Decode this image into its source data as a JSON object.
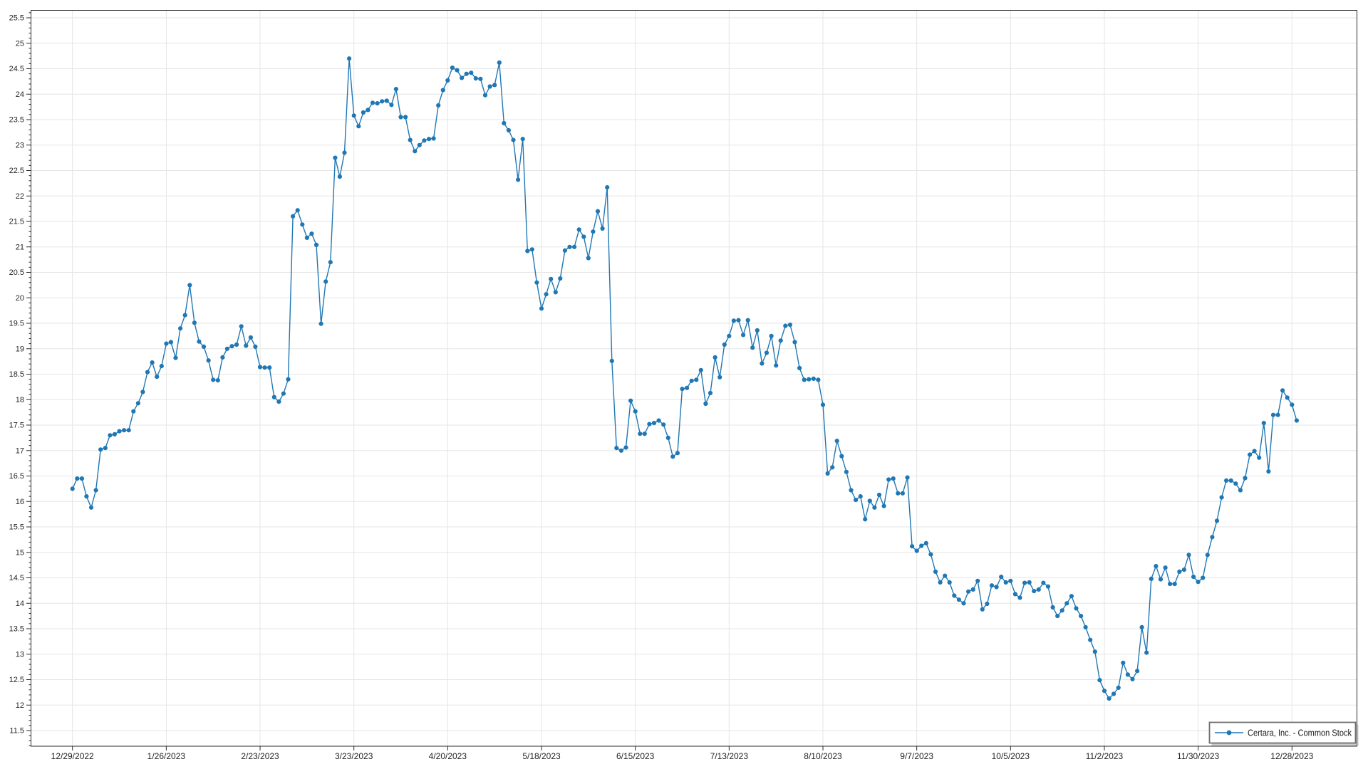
{
  "chart_data": {
    "type": "line",
    "title": "",
    "xlabel": "",
    "ylabel": "",
    "grid": true,
    "background": "#ffffff",
    "line_color": "#1f77b4",
    "marker": "circle",
    "legend_position": "bottom-right",
    "ylim": [
      11.19,
      25.65
    ],
    "y_ticks": [
      11.5,
      12,
      12.5,
      13,
      13.5,
      14,
      14.5,
      15,
      15.5,
      16,
      16.5,
      17,
      17.5,
      18,
      18.5,
      19,
      19.5,
      20,
      20.5,
      21,
      21.5,
      22,
      22.5,
      23,
      23.5,
      24,
      24.5,
      25,
      25.5
    ],
    "y_tick_labels": [
      "11.5",
      "12",
      "12.5",
      "13",
      "13.5",
      "14",
      "14.5",
      "15",
      "15.5",
      "16",
      "16.5",
      "17",
      "17.5",
      "18",
      "18.5",
      "19",
      "19.5",
      "20",
      "20.5",
      "21",
      "21.5",
      "22",
      "22.5",
      "23",
      "23.5",
      "24",
      "24.5",
      "25",
      "25.5"
    ],
    "x_tick_indices": [
      0,
      20,
      40,
      60,
      80,
      100,
      120,
      140,
      160,
      180,
      200,
      220,
      240,
      260
    ],
    "x_tick_labels": [
      "12/29/2022",
      "1/26/2023",
      "2/23/2023",
      "3/23/2023",
      "4/20/2023",
      "5/18/2023",
      "6/15/2023",
      "7/13/2023",
      "8/10/2023",
      "9/7/2023",
      "10/5/2023",
      "11/2/2023",
      "11/30/2023",
      "12/28/2023"
    ],
    "series": [
      {
        "name": "Certara, Inc. - Common Stock",
        "color": "#1f77b4",
        "dates": [
          "12/29/2022",
          "12/30/2022",
          "1/2/2023",
          "1/3/2023",
          "1/4/2023",
          "1/5/2023",
          "1/6/2023",
          "1/9/2023",
          "1/10/2023",
          "1/11/2023",
          "1/12/2023",
          "1/13/2023",
          "1/16/2023",
          "1/17/2023",
          "1/18/2023",
          "1/19/2023",
          "1/20/2023",
          "1/23/2023",
          "1/24/2023",
          "1/25/2023",
          "1/26/2023",
          "1/27/2023",
          "1/30/2023",
          "1/31/2023",
          "2/1/2023",
          "2/2/2023",
          "2/3/2023",
          "2/6/2023",
          "2/7/2023",
          "2/8/2023",
          "2/9/2023",
          "2/10/2023",
          "2/13/2023",
          "2/14/2023",
          "2/15/2023",
          "2/16/2023",
          "2/17/2023",
          "2/20/2023",
          "2/21/2023",
          "2/22/2023",
          "2/23/2023",
          "2/24/2023",
          "2/27/2023",
          "2/28/2023",
          "3/1/2023",
          "3/2/2023",
          "3/3/2023",
          "3/6/2023",
          "3/7/2023",
          "3/8/2023",
          "3/9/2023",
          "3/10/2023",
          "3/13/2023",
          "3/14/2023",
          "3/15/2023",
          "3/16/2023",
          "3/17/2023",
          "3/20/2023",
          "3/21/2023",
          "3/22/2023",
          "3/23/2023",
          "3/24/2023",
          "3/27/2023",
          "3/28/2023",
          "3/29/2023",
          "3/30/2023",
          "3/31/2023",
          "4/3/2023",
          "4/4/2023",
          "4/5/2023",
          "4/6/2023",
          "4/7/2023",
          "4/10/2023",
          "4/11/2023",
          "4/12/2023",
          "4/13/2023",
          "4/14/2023",
          "4/17/2023",
          "4/18/2023",
          "4/19/2023",
          "4/20/2023",
          "4/21/2023",
          "4/24/2023",
          "4/25/2023",
          "4/26/2023",
          "4/27/2023",
          "4/28/2023",
          "5/1/2023",
          "5/2/2023",
          "5/3/2023",
          "5/4/2023",
          "5/5/2023",
          "5/8/2023",
          "5/9/2023",
          "5/10/2023",
          "5/11/2023",
          "5/12/2023",
          "5/15/2023",
          "5/16/2023",
          "5/17/2023",
          "5/18/2023",
          "5/19/2023",
          "5/22/2023",
          "5/23/2023",
          "5/24/2023",
          "5/25/2023",
          "5/26/2023",
          "5/29/2023",
          "5/30/2023",
          "5/31/2023",
          "6/1/2023",
          "6/2/2023",
          "6/5/2023",
          "6/6/2023",
          "6/7/2023",
          "6/8/2023",
          "6/9/2023",
          "6/12/2023",
          "6/13/2023",
          "6/14/2023",
          "6/15/2023",
          "6/16/2023",
          "6/19/2023",
          "6/20/2023",
          "6/21/2023",
          "6/22/2023",
          "6/23/2023",
          "6/26/2023",
          "6/27/2023",
          "6/28/2023",
          "6/29/2023",
          "6/30/2023",
          "7/3/2023",
          "7/4/2023",
          "7/5/2023",
          "7/6/2023",
          "7/7/2023",
          "7/10/2023",
          "7/11/2023",
          "7/12/2023",
          "7/13/2023",
          "7/14/2023",
          "7/17/2023",
          "7/18/2023",
          "7/19/2023",
          "7/20/2023",
          "7/21/2023",
          "7/24/2023",
          "7/25/2023",
          "7/26/2023",
          "7/27/2023",
          "7/28/2023",
          "7/31/2023",
          "8/1/2023",
          "8/2/2023",
          "8/3/2023",
          "8/4/2023",
          "8/7/2023",
          "8/8/2023",
          "8/9/2023",
          "8/10/2023",
          "8/11/2023",
          "8/14/2023",
          "8/15/2023",
          "8/16/2023",
          "8/17/2023",
          "8/18/2023",
          "8/21/2023",
          "8/22/2023",
          "8/23/2023",
          "8/24/2023",
          "8/25/2023",
          "8/28/2023",
          "8/29/2023",
          "8/30/2023",
          "8/31/2023",
          "9/1/2023",
          "9/4/2023",
          "9/5/2023",
          "9/6/2023",
          "9/7/2023",
          "9/8/2023",
          "9/11/2023",
          "9/12/2023",
          "9/13/2023",
          "9/14/2023",
          "9/15/2023",
          "9/18/2023",
          "9/19/2023",
          "9/20/2023",
          "9/21/2023",
          "9/22/2023",
          "9/25/2023",
          "9/26/2023",
          "9/27/2023",
          "9/28/2023",
          "9/29/2023",
          "10/2/2023",
          "10/3/2023",
          "10/4/2023",
          "10/5/2023",
          "10/6/2023",
          "10/9/2023",
          "10/10/2023",
          "10/11/2023",
          "10/12/2023",
          "10/13/2023",
          "10/16/2023",
          "10/17/2023",
          "10/18/2023",
          "10/19/2023",
          "10/20/2023",
          "10/23/2023",
          "10/24/2023",
          "10/25/2023",
          "10/26/2023",
          "10/27/2023",
          "10/30/2023",
          "10/31/2023",
          "11/1/2023",
          "11/2/2023",
          "11/3/2023",
          "11/6/2023",
          "11/7/2023",
          "11/8/2023",
          "11/9/2023",
          "11/10/2023",
          "11/13/2023",
          "11/14/2023",
          "11/15/2023",
          "11/16/2023",
          "11/17/2023",
          "11/20/2023",
          "11/21/2023",
          "11/22/2023",
          "11/23/2023",
          "11/24/2023",
          "11/27/2023",
          "11/28/2023",
          "11/29/2023",
          "11/30/2023",
          "12/1/2023",
          "12/4/2023",
          "12/5/2023",
          "12/6/2023",
          "12/7/2023",
          "12/8/2023",
          "12/11/2023",
          "12/12/2023",
          "12/13/2023",
          "12/14/2023",
          "12/15/2023",
          "12/18/2023",
          "12/19/2023",
          "12/20/2023",
          "12/21/2023",
          "12/22/2023",
          "12/25/2023",
          "12/26/2023",
          "12/27/2023",
          "12/28/2023",
          "12/29/2023"
        ],
        "values": [
          16.25,
          16.45,
          16.45,
          16.1,
          15.88,
          16.22,
          17.02,
          17.05,
          17.3,
          17.32,
          17.38,
          17.4,
          17.4,
          17.77,
          17.93,
          18.15,
          18.54,
          18.73,
          18.45,
          18.66,
          19.1,
          19.13,
          18.82,
          19.4,
          19.66,
          20.25,
          19.51,
          19.14,
          19.04,
          18.77,
          18.39,
          18.38,
          18.83,
          19.0,
          19.05,
          19.08,
          19.44,
          19.06,
          19.22,
          19.04,
          18.64,
          18.63,
          18.63,
          18.05,
          17.96,
          18.12,
          18.4,
          21.6,
          21.72,
          21.44,
          21.18,
          21.26,
          21.04,
          19.49,
          20.32,
          20.7,
          22.75,
          22.38,
          22.85,
          24.7,
          23.58,
          23.37,
          23.64,
          23.69,
          23.83,
          23.82,
          23.86,
          23.87,
          23.79,
          24.1,
          23.55,
          23.55,
          23.1,
          22.88,
          23.0,
          23.09,
          23.12,
          23.13,
          23.78,
          24.08,
          24.27,
          24.52,
          24.47,
          24.32,
          24.4,
          24.42,
          24.31,
          24.3,
          23.98,
          24.15,
          24.18,
          24.62,
          23.43,
          23.29,
          23.1,
          22.32,
          23.12,
          20.92,
          20.95,
          20.3,
          19.79,
          20.07,
          20.37,
          20.11,
          20.38,
          20.93,
          21.0,
          21.0,
          21.34,
          21.2,
          20.78,
          21.3,
          21.7,
          21.36,
          22.17,
          18.76,
          17.05,
          17.0,
          17.06,
          17.98,
          17.77,
          17.33,
          17.33,
          17.52,
          17.54,
          17.59,
          17.51,
          17.25,
          16.88,
          16.95,
          18.21,
          18.23,
          18.37,
          18.39,
          18.58,
          17.92,
          18.13,
          18.83,
          18.44,
          19.08,
          19.25,
          19.55,
          19.56,
          19.27,
          19.56,
          19.02,
          19.36,
          18.71,
          18.92,
          19.25,
          18.67,
          19.16,
          19.45,
          19.47,
          19.13,
          18.62,
          18.39,
          18.4,
          18.41,
          18.39,
          17.9,
          16.55,
          16.67,
          17.19,
          16.89,
          16.58,
          16.22,
          16.03,
          16.1,
          15.65,
          16.01,
          15.88,
          16.13,
          15.91,
          16.43,
          16.45,
          16.16,
          16.16,
          16.47,
          15.12,
          15.03,
          15.13,
          15.18,
          14.96,
          14.62,
          14.41,
          14.54,
          14.41,
          14.15,
          14.07,
          14.0,
          14.23,
          14.27,
          14.44,
          13.88,
          13.99,
          14.35,
          14.32,
          14.52,
          14.41,
          14.44,
          14.18,
          14.11,
          14.4,
          14.41,
          14.24,
          14.27,
          14.4,
          14.33,
          13.92,
          13.75,
          13.86,
          14.0,
          14.14,
          13.9,
          13.75,
          13.53,
          13.28,
          13.05,
          12.49,
          12.28,
          12.13,
          12.22,
          12.34,
          12.83,
          12.6,
          12.51,
          12.67,
          13.53,
          13.03,
          14.48,
          14.73,
          14.47,
          14.7,
          14.38,
          14.38,
          14.62,
          14.66,
          14.95,
          14.52,
          14.42,
          14.5,
          14.95,
          15.3,
          15.62,
          16.08,
          16.41,
          16.41,
          16.35,
          16.22,
          16.46,
          16.92,
          16.99,
          16.86,
          17.54,
          16.59,
          17.7,
          17.7,
          18.18,
          18.04,
          17.9,
          17.59
        ]
      }
    ]
  }
}
